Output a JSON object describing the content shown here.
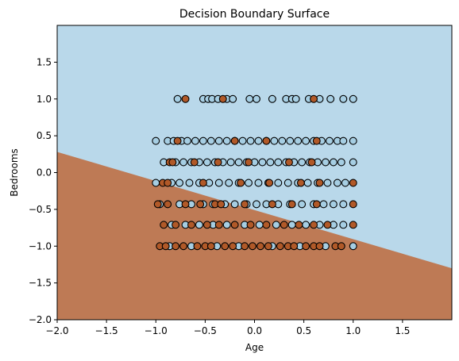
{
  "chart_data": {
    "type": "scatter",
    "title": "Decision Boundary Surface",
    "xlabel": "Age",
    "ylabel": "Bedrooms",
    "xlim": [
      -2.0,
      2.0
    ],
    "ylim": [
      -2.0,
      2.0
    ],
    "x_ticks": [
      -2.0,
      -1.5,
      -1.0,
      -0.5,
      0.0,
      0.5,
      1.0,
      1.5
    ],
    "x_tick_labels": [
      "−2.0",
      "−1.5",
      "−1.0",
      "−0.5",
      "0.0",
      "0.5",
      "1.0",
      "1.5"
    ],
    "y_ticks": [
      -2.0,
      -1.5,
      -1.0,
      -0.5,
      0.0,
      0.5,
      1.0,
      1.5
    ],
    "y_tick_labels": [
      "−2.0",
      "−1.5",
      "−1.0",
      "−0.5",
      "0.0",
      "0.5",
      "1.0",
      "1.5"
    ],
    "grid": false,
    "decision_boundary": {
      "line": [
        [
          -2.0,
          0.28
        ],
        [
          2.0,
          -1.3
        ]
      ],
      "region_above_color": "#b9d8ea",
      "region_below_color": "#be7a55"
    },
    "class_colors": {
      "class_0": "#a6cee3",
      "class_1": "#b15928"
    },
    "y_levels": [
      1.0,
      0.43,
      0.14,
      -0.14,
      -0.43,
      -0.71,
      -1.0
    ],
    "points": [
      {
        "y": 1.0,
        "class": "class_0",
        "x": [
          -0.78,
          -0.52,
          -0.47,
          -0.43,
          -0.37,
          -0.28,
          -0.22,
          -0.05,
          0.02,
          0.18,
          0.32,
          0.38,
          0.42,
          0.55,
          0.66,
          0.77,
          0.9,
          1.0
        ]
      },
      {
        "y": 1.0,
        "class": "class_1",
        "x": [
          -0.7,
          -0.32,
          0.6
        ]
      },
      {
        "y": 0.43,
        "class": "class_0",
        "x": [
          -1.0,
          -0.88,
          -0.82,
          -0.74,
          -0.68,
          -0.6,
          -0.52,
          -0.44,
          -0.36,
          -0.28,
          -0.2,
          -0.12,
          -0.04,
          0.04,
          0.12,
          0.2,
          0.28,
          0.36,
          0.44,
          0.52,
          0.6,
          0.68,
          0.76,
          0.84,
          0.9,
          1.0
        ]
      },
      {
        "y": 0.43,
        "class": "class_1",
        "x": [
          -0.78,
          -0.2,
          0.12,
          0.63
        ]
      },
      {
        "y": 0.14,
        "class": "class_0",
        "x": [
          -0.92,
          -0.8,
          -0.72,
          -0.64,
          -0.56,
          -0.48,
          -0.4,
          -0.32,
          -0.24,
          -0.16,
          -0.08,
          0.0,
          0.08,
          0.16,
          0.24,
          0.32,
          0.4,
          0.48,
          0.56,
          0.64,
          0.72,
          0.8,
          0.88,
          1.0
        ]
      },
      {
        "y": 0.14,
        "class": "class_1",
        "x": [
          -0.86,
          -0.83,
          -0.61,
          -0.37,
          -0.06,
          0.35,
          0.58
        ]
      },
      {
        "y": -0.14,
        "class": "class_0",
        "x": [
          -1.0,
          -0.84,
          -0.76,
          -0.66,
          -0.56,
          -0.46,
          -0.36,
          -0.26,
          -0.16,
          -0.06,
          0.04,
          0.14,
          0.24,
          0.34,
          0.44,
          0.54,
          0.64,
          0.74,
          0.84,
          0.92
        ]
      },
      {
        "y": -0.14,
        "class": "class_1",
        "x": [
          -0.93,
          -0.88,
          -0.52,
          -0.14,
          0.15,
          0.47,
          0.66,
          1.0
        ]
      },
      {
        "y": -0.43,
        "class": "class_0",
        "x": [
          -0.96,
          -0.76,
          -0.64,
          -0.52,
          -0.42,
          -0.3,
          -0.2,
          -0.08,
          0.02,
          0.12,
          0.24,
          0.36,
          0.48,
          0.6,
          0.7,
          0.8,
          0.9
        ]
      },
      {
        "y": -0.43,
        "class": "class_1",
        "x": [
          -0.98,
          -0.88,
          -0.7,
          -0.55,
          -0.4,
          -0.34,
          -0.1,
          0.18,
          0.38,
          0.63,
          1.0
        ]
      },
      {
        "y": -0.71,
        "class": "class_0",
        "x": [
          -0.84,
          -0.7,
          -0.56,
          -0.42,
          -0.28,
          -0.1,
          0.05,
          0.22,
          0.38,
          0.52,
          0.66,
          0.8,
          0.9
        ]
      },
      {
        "y": -0.71,
        "class": "class_1",
        "x": [
          -0.92,
          -0.8,
          -0.64,
          -0.48,
          -0.36,
          -0.2,
          -0.04,
          0.12,
          0.3,
          0.45,
          0.6,
          0.74,
          1.0
        ]
      },
      {
        "y": -1.0,
        "class": "class_0",
        "x": [
          -0.86,
          -0.64,
          -0.38,
          -0.16,
          0.18,
          0.46,
          0.72,
          1.0
        ]
      },
      {
        "y": -1.0,
        "class": "class_1",
        "x": [
          -0.96,
          -0.9,
          -0.8,
          -0.72,
          -0.58,
          -0.5,
          -0.44,
          -0.3,
          -0.22,
          -0.1,
          -0.02,
          0.06,
          0.14,
          0.26,
          0.34,
          0.4,
          0.52,
          0.6,
          0.66,
          0.82,
          0.88
        ]
      }
    ]
  }
}
